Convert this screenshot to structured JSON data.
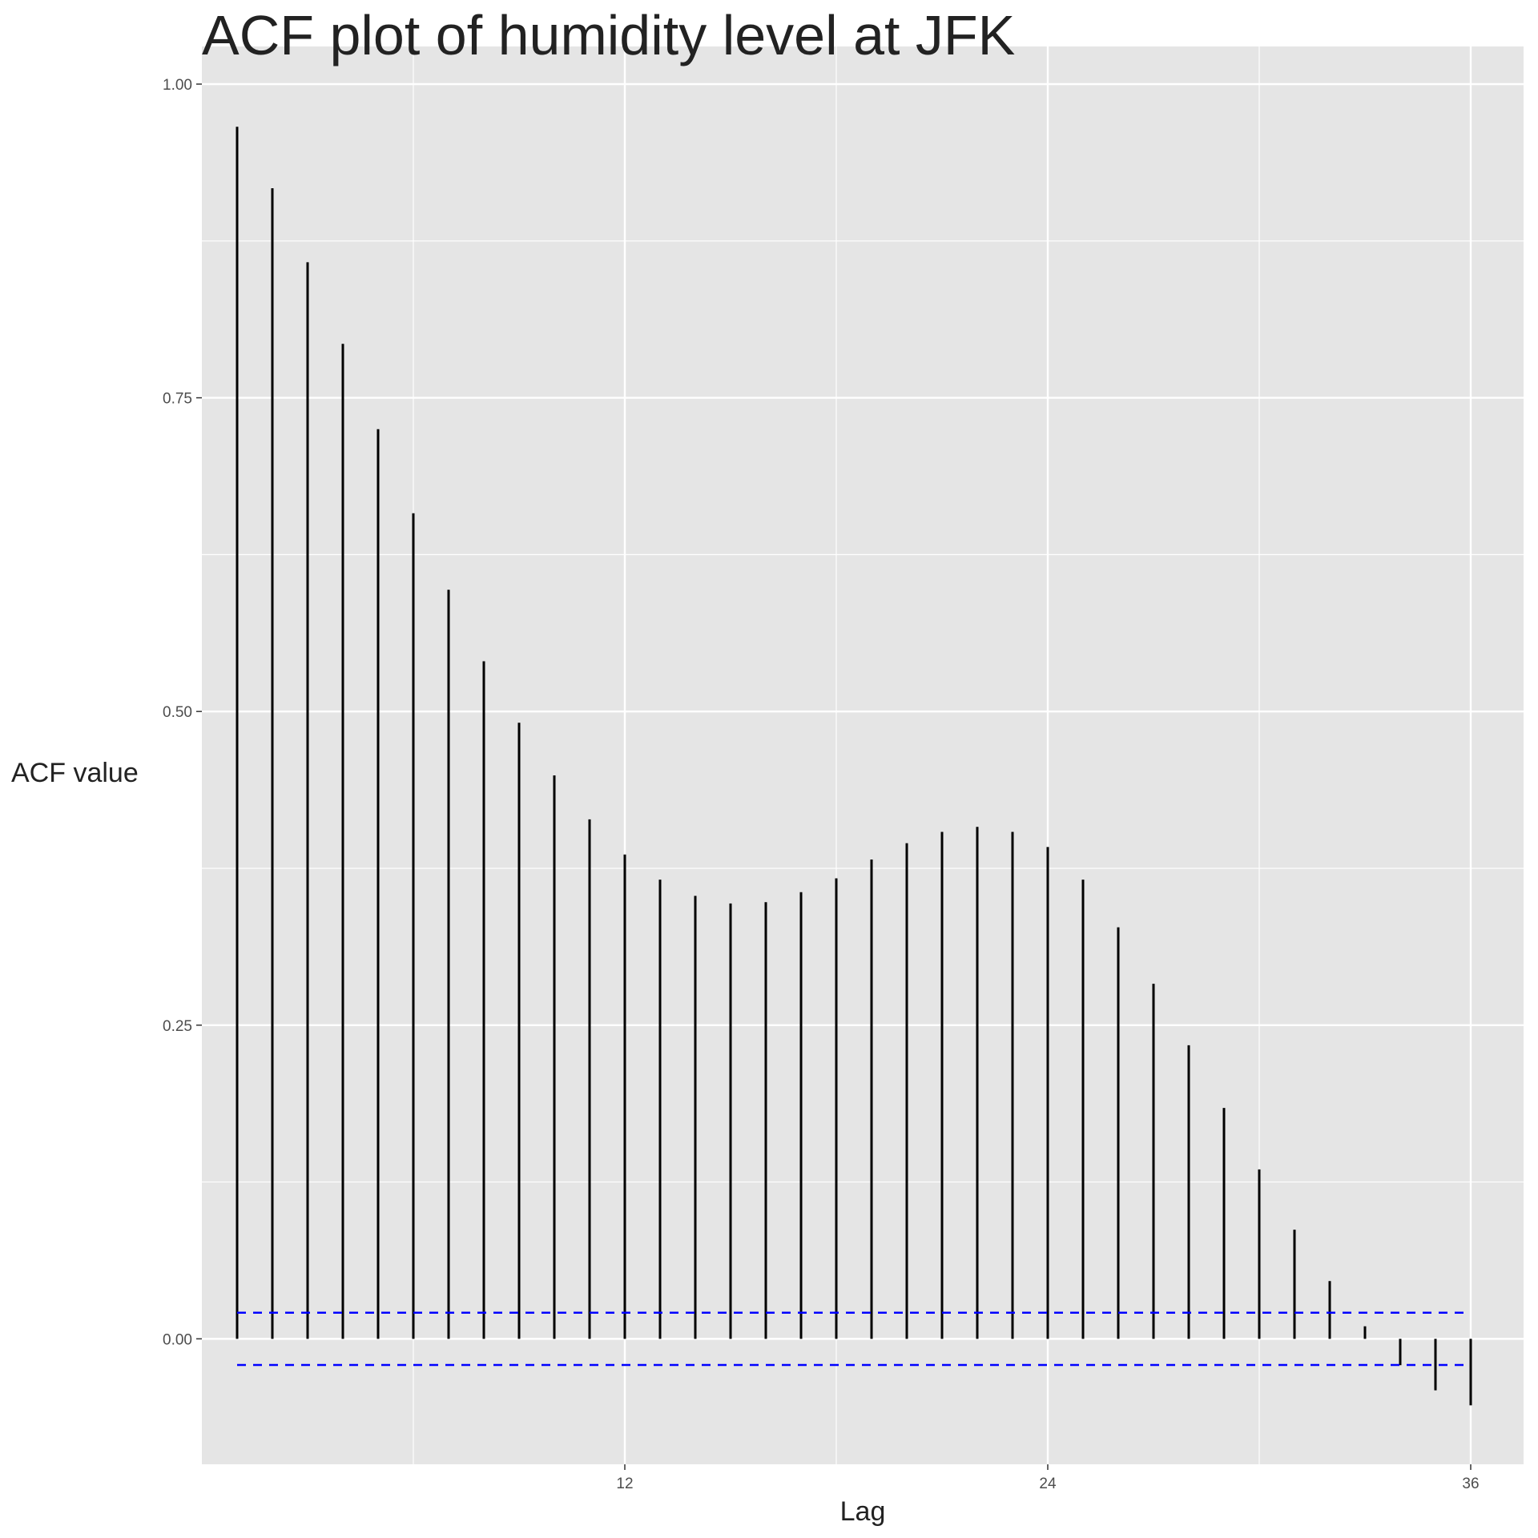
{
  "chart_data": {
    "type": "bar",
    "title": "ACF plot of humidity level at JFK",
    "xlabel": "Lag",
    "ylabel": "ACF value",
    "x": [
      1,
      2,
      3,
      4,
      5,
      6,
      7,
      8,
      9,
      10,
      11,
      12,
      13,
      14,
      15,
      16,
      17,
      18,
      19,
      20,
      21,
      22,
      23,
      24,
      25,
      26,
      27,
      28,
      29,
      30,
      31,
      32,
      33,
      34,
      35,
      36
    ],
    "values": [
      0.966,
      0.917,
      0.858,
      0.793,
      0.725,
      0.658,
      0.597,
      0.54,
      0.491,
      0.449,
      0.414,
      0.386,
      0.366,
      0.353,
      0.347,
      0.348,
      0.356,
      0.367,
      0.382,
      0.395,
      0.404,
      0.408,
      0.404,
      0.392,
      0.366,
      0.328,
      0.283,
      0.234,
      0.184,
      0.135,
      0.087,
      0.046,
      0.01,
      -0.021,
      -0.041,
      -0.053
    ],
    "confidence_band": [
      -0.0208,
      0.0208
    ],
    "xlim": [
      0,
      37.5
    ],
    "ylim": [
      -0.1,
      1.03
    ],
    "x_ticks": [
      12,
      24,
      36
    ],
    "x_tick_labels": [
      "12",
      "24",
      "36"
    ],
    "y_ticks": [
      0,
      0.25,
      0.5,
      0.75,
      1.0
    ],
    "y_tick_labels": [
      "0.00",
      "0.25",
      "0.50",
      "0.75",
      "1.00"
    ],
    "grid": true,
    "colors": {
      "panel": "#e5e5e5",
      "grid": "#ffffff",
      "bars": "#000000",
      "band": "#0000ff"
    }
  }
}
